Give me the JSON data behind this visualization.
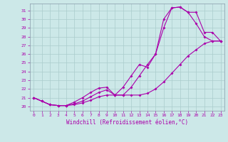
{
  "xlabel": "Windchill (Refroidissement éolien,°C)",
  "bg_color": "#cce8e8",
  "grid_color": "#aacccc",
  "line_color": "#aa00aa",
  "spine_color": "#8899aa",
  "x_ticks": [
    0,
    1,
    2,
    3,
    4,
    5,
    6,
    7,
    8,
    9,
    10,
    11,
    12,
    13,
    14,
    15,
    16,
    17,
    18,
    19,
    20,
    21,
    22,
    23
  ],
  "y_ticks": [
    20,
    21,
    22,
    23,
    24,
    25,
    26,
    27,
    28,
    29,
    30,
    31
  ],
  "xlim": [
    -0.5,
    23.5
  ],
  "ylim": [
    19.5,
    31.8
  ],
  "line1_x": [
    0,
    1,
    2,
    3,
    4,
    5,
    6,
    7,
    8,
    9,
    10,
    11,
    12,
    13,
    14,
    15,
    16,
    17,
    18,
    19,
    20,
    21,
    22,
    23
  ],
  "line1_y": [
    21.0,
    20.6,
    20.2,
    20.1,
    20.1,
    20.2,
    20.4,
    20.7,
    21.1,
    21.3,
    21.3,
    21.3,
    22.2,
    23.5,
    24.8,
    26.0,
    30.0,
    31.3,
    31.4,
    30.8,
    29.5,
    28.0,
    27.5,
    27.5
  ],
  "line2_x": [
    0,
    1,
    2,
    3,
    4,
    5,
    6,
    7,
    8,
    9,
    10,
    11,
    12,
    13,
    14,
    15,
    16,
    17,
    18,
    19,
    20,
    21,
    22,
    23
  ],
  "line2_y": [
    21.0,
    20.6,
    20.2,
    20.1,
    20.1,
    20.3,
    20.6,
    21.1,
    21.6,
    21.9,
    21.3,
    22.2,
    23.5,
    24.8,
    24.5,
    26.0,
    29.0,
    31.3,
    31.4,
    30.8,
    30.8,
    28.5,
    28.5,
    27.5
  ],
  "line3_x": [
    0,
    1,
    2,
    3,
    4,
    5,
    6,
    7,
    8,
    9,
    10,
    11,
    12,
    13,
    14,
    15,
    16,
    17,
    18,
    19,
    20,
    21,
    22,
    23
  ],
  "line3_y": [
    21.0,
    20.6,
    20.2,
    20.1,
    20.1,
    20.5,
    21.0,
    21.6,
    22.1,
    22.2,
    21.3,
    21.3,
    21.3,
    21.3,
    21.5,
    22.0,
    22.8,
    23.8,
    24.8,
    25.8,
    26.5,
    27.2,
    27.5,
    27.5
  ]
}
